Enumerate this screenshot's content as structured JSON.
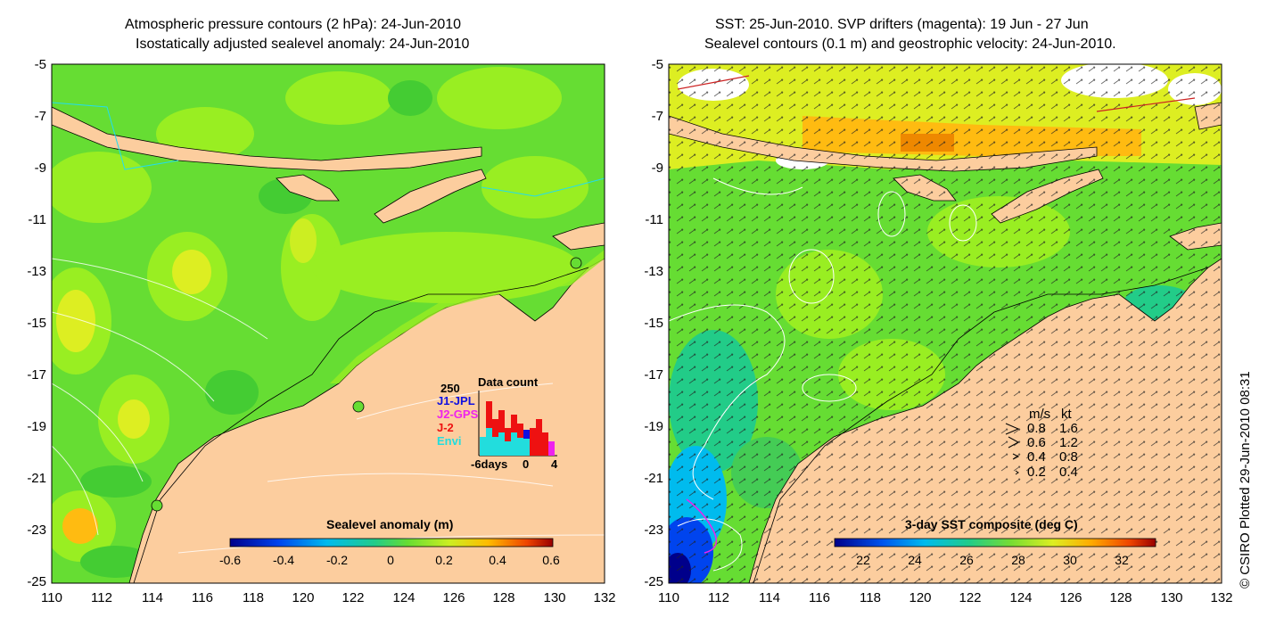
{
  "left_panel": {
    "title_line1": "Atmospheric pressure contours (2 hPa): 24-Jun-2010",
    "title_line2": "Isostatically adjusted sealevel anomaly: 24-Jun-2010",
    "colorbar_title": "Sealevel anomaly (m)",
    "colorbar_ticks": [
      "-0.6",
      "-0.4",
      "-0.2",
      "0",
      "0.2",
      "0.4",
      "0.6"
    ],
    "data_count": {
      "title": "Data count",
      "ymax_label": "250",
      "legend": [
        {
          "label": "J1-JPL",
          "color": "#1010e0"
        },
        {
          "label": "J2-GPS",
          "color": "#ee22ee"
        },
        {
          "label": "J-2",
          "color": "#ee1111"
        },
        {
          "label": "Envi",
          "color": "#22dddd"
        }
      ],
      "x_labels": [
        "-6days",
        "0",
        "4"
      ]
    }
  },
  "right_panel": {
    "title_line1": "SST: 25-Jun-2010. SVP drifters (magenta): 19 Jun - 27 Jun",
    "title_line2": "Sealevel contours (0.1 m) and geostrophic velocity: 24-Jun-2010.",
    "colorbar_title": "3-day SST composite (deg C)",
    "colorbar_ticks": [
      "22",
      "24",
      "26",
      "28",
      "30",
      "32"
    ],
    "velocity_legend": {
      "header_ms": "m/s",
      "header_kt": "kt",
      "rows": [
        {
          "ms": "0.8",
          "kt": "1.6"
        },
        {
          "ms": "0.6",
          "kt": "1.2"
        },
        {
          "ms": "0.4",
          "kt": "0.8"
        },
        {
          "ms": "0.2",
          "kt": "0.4"
        }
      ]
    }
  },
  "axes": {
    "y_ticks": [
      "-5",
      "-7",
      "-9",
      "-11",
      "-13",
      "-15",
      "-17",
      "-19",
      "-21",
      "-23",
      "-25"
    ],
    "x_ticks": [
      "110",
      "112",
      "114",
      "116",
      "118",
      "120",
      "122",
      "124",
      "126",
      "128",
      "130",
      "132"
    ]
  },
  "credit": "© CSIRO Plotted 29-Jun-2010 08:31",
  "colors": {
    "land": "#fccd9e",
    "sea_green": "#66dd33",
    "sea_light": "#99ee22"
  }
}
